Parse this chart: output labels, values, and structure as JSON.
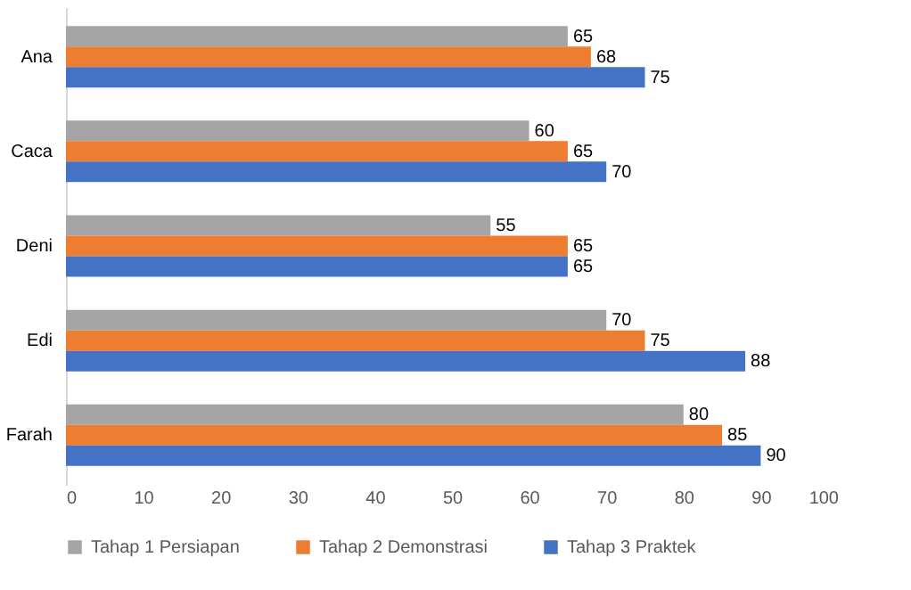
{
  "chart_data": {
    "type": "bar",
    "orientation": "horizontal",
    "categories": [
      "Ana",
      "Caca",
      "Deni",
      "Edi",
      "Farah"
    ],
    "series": [
      {
        "name": "Tahap 1 Persiapan",
        "color": "#a5a5a5",
        "values": [
          65,
          60,
          55,
          70,
          80
        ]
      },
      {
        "name": "Tahap 2 Demonstrasi",
        "color": "#ed7d31",
        "values": [
          68,
          65,
          65,
          75,
          85
        ]
      },
      {
        "name": "Tahap 3 Praktek",
        "color": "#4472c4",
        "values": [
          75,
          70,
          65,
          88,
          90
        ]
      }
    ],
    "xlim": [
      0,
      100
    ],
    "xticks": [
      0,
      10,
      20,
      30,
      40,
      50,
      60,
      70,
      80,
      90,
      100
    ],
    "data_labels": true,
    "legend": "bottom",
    "grid": false
  }
}
